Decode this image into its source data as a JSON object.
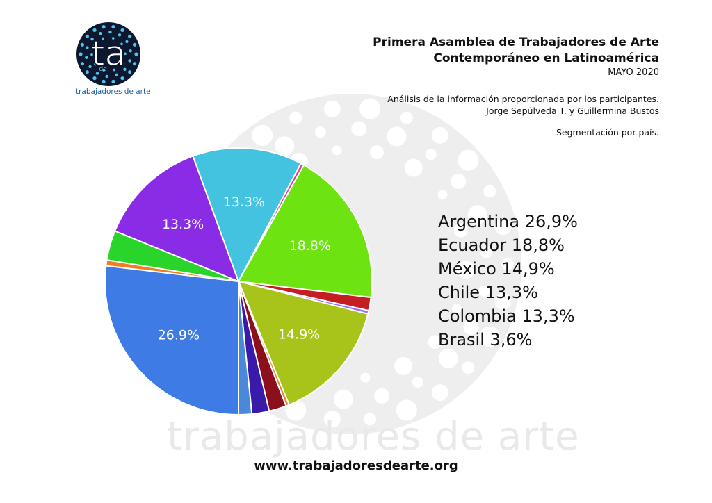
{
  "header": {
    "title_line1": "Primera Asamblea de Trabajadores de Arte",
    "title_line2": "Contemporáneo en Latinoamérica",
    "date": "MAYO 2020",
    "analysis_line1": "Análisis de la información proporcionada por los participantes.",
    "analysis_line2": "Jorge Sepúlveda T. y Guillermina Bustos",
    "segmentation": "Segmentación por país."
  },
  "logo": {
    "big_letters": "ta",
    "small_letters": "de",
    "caption": "trabajadores de arte",
    "ring_color": "#0d1730",
    "dot_color": "#4fc4e8"
  },
  "watermark_text": "trabajadores de arte",
  "footer": {
    "website": "www.trabajadoresdearte.org"
  },
  "chart_data": {
    "type": "pie",
    "start_angle_deg": 90,
    "direction": "clockwise",
    "slices": [
      {
        "value": 26.9,
        "color": "#3f7be4",
        "label": "26.9%"
      },
      {
        "value": 0.7,
        "color": "#f07f1f",
        "label": ""
      },
      {
        "value": 3.6,
        "color": "#29d42b",
        "label": ""
      },
      {
        "value": 13.3,
        "color": "#8a2be6",
        "label": "13.3%"
      },
      {
        "value": 13.3,
        "color": "#43c3e0",
        "label": "13.3%"
      },
      {
        "value": 0.4,
        "color": "#e53c8a",
        "label": ""
      },
      {
        "value": 18.8,
        "color": "#6de312",
        "label": "18.8%"
      },
      {
        "value": 1.6,
        "color": "#c41d22",
        "label": ""
      },
      {
        "value": 0.4,
        "color": "#a16bf5",
        "label": ""
      },
      {
        "value": 14.9,
        "color": "#a8c41a",
        "label": "14.9%"
      },
      {
        "value": 0.4,
        "color": "#e08a30",
        "label": ""
      },
      {
        "value": 2.1,
        "color": "#8c0f1e",
        "label": ""
      },
      {
        "value": 2.1,
        "color": "#3a1aaa",
        "label": ""
      },
      {
        "value": 1.6,
        "color": "#4a88da",
        "label": ""
      }
    ],
    "legend": [
      "Argentina 26,9%",
      "Ecuador 18,8%",
      "México 14,9%",
      "Chile 13,3%",
      "Colombia 13,3%",
      "Brasil 3,6%"
    ]
  }
}
